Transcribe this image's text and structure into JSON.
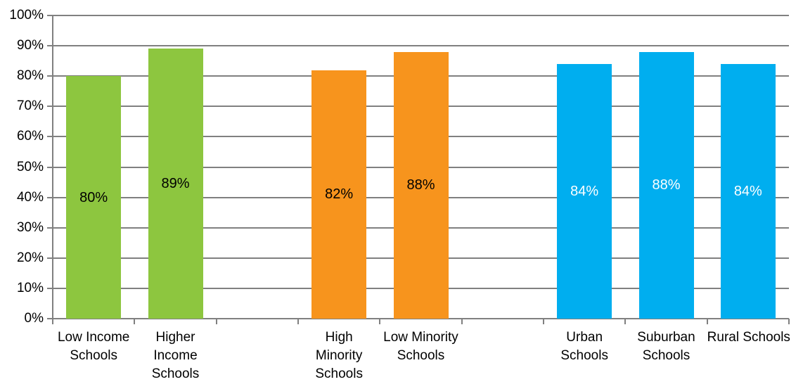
{
  "chart_data": {
    "type": "bar",
    "title": "",
    "xlabel": "",
    "ylabel": "",
    "ylim": [
      0,
      100
    ],
    "ytick_step": 10,
    "grid": true,
    "legend": "none",
    "background_color": "#FFFFFF",
    "axis_color": "#808080",
    "gridline_color": "#808080",
    "text_color": "#000000",
    "num_slots": 9,
    "empty_slots": [
      2,
      5
    ],
    "yticks": [
      {
        "value": 0,
        "label": "0%"
      },
      {
        "value": 10,
        "label": "10%"
      },
      {
        "value": 20,
        "label": "20%"
      },
      {
        "value": 30,
        "label": "30%"
      },
      {
        "value": 40,
        "label": "40%"
      },
      {
        "value": 50,
        "label": "50%"
      },
      {
        "value": 60,
        "label": "60%"
      },
      {
        "value": 70,
        "label": "70%"
      },
      {
        "value": 80,
        "label": "80%"
      },
      {
        "value": 90,
        "label": "90%"
      },
      {
        "value": 100,
        "label": "100%"
      }
    ],
    "bars": [
      {
        "slot": 0,
        "category": "Low Income Schools",
        "category_lines": [
          "Low Income",
          "Schools"
        ],
        "value": 80,
        "value_label": "80%",
        "color": "#8DC63F",
        "value_label_color": "#000000"
      },
      {
        "slot": 1,
        "category": "Higher Income Schools",
        "category_lines": [
          "Higher",
          "Income",
          "Schools"
        ],
        "value": 89,
        "value_label": "89%",
        "color": "#8DC63F",
        "value_label_color": "#000000"
      },
      {
        "slot": 3,
        "category": "High Minority Schools",
        "category_lines": [
          "High",
          "Minority",
          "Schools"
        ],
        "value": 82,
        "value_label": "82%",
        "color": "#F7941D",
        "value_label_color": "#000000"
      },
      {
        "slot": 4,
        "category": "Low Minority Schools",
        "category_lines": [
          "Low Minority",
          "Schools"
        ],
        "value": 88,
        "value_label": "88%",
        "color": "#F7941D",
        "value_label_color": "#000000"
      },
      {
        "slot": 6,
        "category": "Urban Schools",
        "category_lines": [
          "Urban",
          "Schools"
        ],
        "value": 84,
        "value_label": "84%",
        "color": "#00AEEF",
        "value_label_color": "#FFFFFF"
      },
      {
        "slot": 7,
        "category": "Suburban Schools",
        "category_lines": [
          "Suburban",
          "Schools"
        ],
        "value": 88,
        "value_label": "88%",
        "color": "#00AEEF",
        "value_label_color": "#FFFFFF"
      },
      {
        "slot": 8,
        "category": "Rural Schools",
        "category_lines": [
          "Rural Schools"
        ],
        "value": 84,
        "value_label": "84%",
        "color": "#00AEEF",
        "value_label_color": "#FFFFFF"
      }
    ]
  }
}
